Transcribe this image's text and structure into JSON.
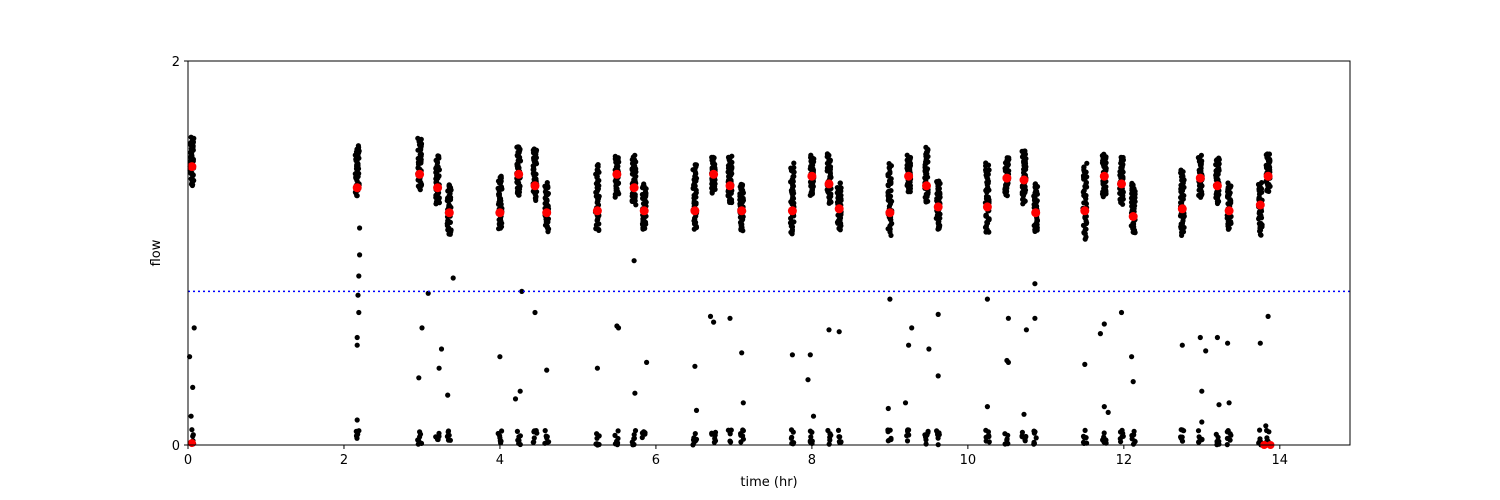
{
  "chart_data": {
    "type": "scatter",
    "title": "",
    "xlabel": "time (hr)",
    "ylabel": "flow",
    "xlim": [
      0,
      14.9
    ],
    "ylim": [
      0,
      2
    ],
    "xticks": [
      0,
      2,
      4,
      6,
      8,
      10,
      12,
      14
    ],
    "yticks": [
      0,
      2
    ],
    "grid": false,
    "threshold": {
      "y": 0.8,
      "color": "#0000ff",
      "style": "dotted"
    },
    "colors": {
      "points": "#000000",
      "highlight": "#ff0000"
    },
    "clusters": [
      {
        "x": 0.05,
        "y_top": 1.6,
        "y_bot": 1.35
      },
      {
        "x": 2.17,
        "y_top": 1.56,
        "y_bot": 1.3
      },
      {
        "x": 2.97,
        "y_top": 1.6,
        "y_bot": 1.33
      },
      {
        "x": 3.2,
        "y_top": 1.5,
        "y_bot": 1.26
      },
      {
        "x": 3.35,
        "y_top": 1.36,
        "y_bot": 1.1
      },
      {
        "x": 4.0,
        "y_top": 1.4,
        "y_bot": 1.12
      },
      {
        "x": 4.24,
        "y_top": 1.56,
        "y_bot": 1.3
      },
      {
        "x": 4.45,
        "y_top": 1.55,
        "y_bot": 1.28
      },
      {
        "x": 4.6,
        "y_top": 1.36,
        "y_bot": 1.12
      },
      {
        "x": 5.25,
        "y_top": 1.46,
        "y_bot": 1.12
      },
      {
        "x": 5.5,
        "y_top": 1.5,
        "y_bot": 1.3
      },
      {
        "x": 5.72,
        "y_top": 1.5,
        "y_bot": 1.26
      },
      {
        "x": 5.85,
        "y_top": 1.36,
        "y_bot": 1.12
      },
      {
        "x": 6.5,
        "y_top": 1.46,
        "y_bot": 1.12
      },
      {
        "x": 6.74,
        "y_top": 1.5,
        "y_bot": 1.32
      },
      {
        "x": 6.95,
        "y_top": 1.5,
        "y_bot": 1.26
      },
      {
        "x": 7.1,
        "y_top": 1.36,
        "y_bot": 1.12
      },
      {
        "x": 7.75,
        "y_top": 1.46,
        "y_bot": 1.1
      },
      {
        "x": 8.0,
        "y_top": 1.5,
        "y_bot": 1.3
      },
      {
        "x": 8.22,
        "y_top": 1.52,
        "y_bot": 1.26
      },
      {
        "x": 8.35,
        "y_top": 1.36,
        "y_bot": 1.12
      },
      {
        "x": 9.0,
        "y_top": 1.46,
        "y_bot": 1.1
      },
      {
        "x": 9.24,
        "y_top": 1.5,
        "y_bot": 1.32
      },
      {
        "x": 9.47,
        "y_top": 1.54,
        "y_bot": 1.26
      },
      {
        "x": 9.62,
        "y_top": 1.38,
        "y_bot": 1.12
      },
      {
        "x": 10.25,
        "y_top": 1.46,
        "y_bot": 1.1
      },
      {
        "x": 10.5,
        "y_top": 1.5,
        "y_bot": 1.3
      },
      {
        "x": 10.72,
        "y_top": 1.54,
        "y_bot": 1.26
      },
      {
        "x": 10.87,
        "y_top": 1.36,
        "y_bot": 1.12
      },
      {
        "x": 11.5,
        "y_top": 1.46,
        "y_bot": 1.08
      },
      {
        "x": 11.75,
        "y_top": 1.52,
        "y_bot": 1.3
      },
      {
        "x": 11.97,
        "y_top": 1.5,
        "y_bot": 1.26
      },
      {
        "x": 12.12,
        "y_top": 1.36,
        "y_bot": 1.1
      },
      {
        "x": 12.75,
        "y_top": 1.44,
        "y_bot": 1.1
      },
      {
        "x": 12.98,
        "y_top": 1.5,
        "y_bot": 1.3
      },
      {
        "x": 13.2,
        "y_top": 1.5,
        "y_bot": 1.26
      },
      {
        "x": 13.35,
        "y_top": 1.36,
        "y_bot": 1.12
      },
      {
        "x": 13.75,
        "y_top": 1.36,
        "y_bot": 1.1
      },
      {
        "x": 13.85,
        "y_top": 1.52,
        "y_bot": 1.32
      }
    ],
    "means": [
      {
        "x": 0.05,
        "y": 1.45
      },
      {
        "x": 2.17,
        "y": 1.34
      },
      {
        "x": 2.97,
        "y": 1.41
      },
      {
        "x": 3.2,
        "y": 1.34
      },
      {
        "x": 3.35,
        "y": 1.21
      },
      {
        "x": 4.0,
        "y": 1.21
      },
      {
        "x": 4.24,
        "y": 1.41
      },
      {
        "x": 4.45,
        "y": 1.35
      },
      {
        "x": 4.6,
        "y": 1.21
      },
      {
        "x": 5.25,
        "y": 1.22
      },
      {
        "x": 5.5,
        "y": 1.41
      },
      {
        "x": 5.72,
        "y": 1.34
      },
      {
        "x": 5.85,
        "y": 1.22
      },
      {
        "x": 6.5,
        "y": 1.22
      },
      {
        "x": 6.74,
        "y": 1.41
      },
      {
        "x": 6.95,
        "y": 1.35
      },
      {
        "x": 7.1,
        "y": 1.22
      },
      {
        "x": 7.75,
        "y": 1.22
      },
      {
        "x": 8.0,
        "y": 1.4
      },
      {
        "x": 8.22,
        "y": 1.36
      },
      {
        "x": 8.35,
        "y": 1.23
      },
      {
        "x": 9.0,
        "y": 1.21
      },
      {
        "x": 9.24,
        "y": 1.4
      },
      {
        "x": 9.47,
        "y": 1.35
      },
      {
        "x": 9.62,
        "y": 1.24
      },
      {
        "x": 10.25,
        "y": 1.24
      },
      {
        "x": 10.5,
        "y": 1.39
      },
      {
        "x": 10.72,
        "y": 1.38
      },
      {
        "x": 10.87,
        "y": 1.21
      },
      {
        "x": 11.5,
        "y": 1.22
      },
      {
        "x": 11.75,
        "y": 1.4
      },
      {
        "x": 11.97,
        "y": 1.36
      },
      {
        "x": 12.12,
        "y": 1.19
      },
      {
        "x": 12.75,
        "y": 1.23
      },
      {
        "x": 12.98,
        "y": 1.39
      },
      {
        "x": 13.2,
        "y": 1.35
      },
      {
        "x": 13.35,
        "y": 1.22
      },
      {
        "x": 13.75,
        "y": 1.25
      },
      {
        "x": 13.85,
        "y": 1.4
      }
    ],
    "scattered_points": [
      [
        0.02,
        0.46
      ],
      [
        0.06,
        0.3
      ],
      [
        0.04,
        0.15
      ],
      [
        0.08,
        0.61
      ],
      [
        2.17,
        0.56
      ],
      [
        2.17,
        0.52
      ],
      [
        2.19,
        0.69
      ],
      [
        2.18,
        0.78
      ],
      [
        2.19,
        0.88
      ],
      [
        2.2,
        0.99
      ],
      [
        2.2,
        1.13
      ],
      [
        2.17,
        0.13
      ],
      [
        3.0,
        0.61
      ],
      [
        2.96,
        0.35
      ],
      [
        3.08,
        0.79
      ],
      [
        3.22,
        0.4
      ],
      [
        3.25,
        0.5
      ],
      [
        3.33,
        0.26
      ],
      [
        3.4,
        0.87
      ],
      [
        4.0,
        0.46
      ],
      [
        4.2,
        0.24
      ],
      [
        4.26,
        0.28
      ],
      [
        4.28,
        0.8
      ],
      [
        4.45,
        0.69
      ],
      [
        4.6,
        0.39
      ],
      [
        5.25,
        0.4
      ],
      [
        5.5,
        0.62
      ],
      [
        5.52,
        0.61
      ],
      [
        5.73,
        0.27
      ],
      [
        5.72,
        0.96
      ],
      [
        5.88,
        0.43
      ],
      [
        6.5,
        0.41
      ],
      [
        6.52,
        0.18
      ],
      [
        6.7,
        0.67
      ],
      [
        6.74,
        0.64
      ],
      [
        6.95,
        0.66
      ],
      [
        7.1,
        0.48
      ],
      [
        7.12,
        0.22
      ],
      [
        7.75,
        0.47
      ],
      [
        7.95,
        0.34
      ],
      [
        7.98,
        0.47
      ],
      [
        8.02,
        0.15
      ],
      [
        8.22,
        0.6
      ],
      [
        8.35,
        0.59
      ],
      [
        9.0,
        0.76
      ],
      [
        8.98,
        0.19
      ],
      [
        9.24,
        0.52
      ],
      [
        9.28,
        0.61
      ],
      [
        9.2,
        0.22
      ],
      [
        9.5,
        0.5
      ],
      [
        9.62,
        0.36
      ],
      [
        9.62,
        0.68
      ],
      [
        10.25,
        0.76
      ],
      [
        10.25,
        0.2
      ],
      [
        10.5,
        0.44
      ],
      [
        10.52,
        0.43
      ],
      [
        10.52,
        0.66
      ],
      [
        10.75,
        0.6
      ],
      [
        10.72,
        0.16
      ],
      [
        10.86,
        0.66
      ],
      [
        10.86,
        0.84
      ],
      [
        11.5,
        0.42
      ],
      [
        11.7,
        0.58
      ],
      [
        11.75,
        0.63
      ],
      [
        11.75,
        0.2
      ],
      [
        11.8,
        0.17
      ],
      [
        11.97,
        0.69
      ],
      [
        12.1,
        0.46
      ],
      [
        12.12,
        0.33
      ],
      [
        12.75,
        0.52
      ],
      [
        12.98,
        0.56
      ],
      [
        13.0,
        0.28
      ],
      [
        13.05,
        0.49
      ],
      [
        13.0,
        0.12
      ],
      [
        13.2,
        0.56
      ],
      [
        13.22,
        0.21
      ],
      [
        13.35,
        0.22
      ],
      [
        13.33,
        0.53
      ],
      [
        13.75,
        0.53
      ],
      [
        13.85,
        0.67
      ],
      [
        13.82,
        0.1
      ]
    ]
  }
}
